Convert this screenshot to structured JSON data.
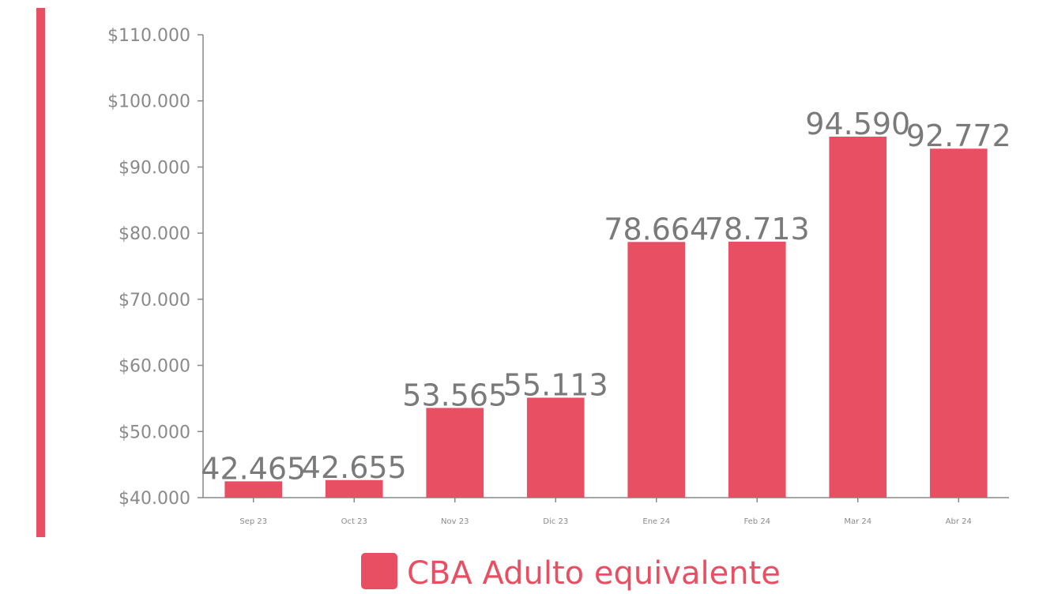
{
  "chart_data": {
    "type": "bar",
    "categories": [
      "Sep 23",
      "Oct 23",
      "Nov 23",
      "Dic 23",
      "Ene 24",
      "Feb 24",
      "Mar 24",
      "Abr 24"
    ],
    "series": [
      {
        "name": "CBA Adulto equivalente",
        "color": "#e84f62",
        "values": [
          42465,
          42655,
          53565,
          55113,
          78664,
          78713,
          94590,
          92772
        ],
        "value_labels": [
          "42.465",
          "42.655",
          "53.565",
          "55.113",
          "78.664",
          "78.713",
          "94.590",
          "92.772"
        ]
      }
    ],
    "ylim": [
      40000,
      110000
    ],
    "yticks": [
      {
        "value": 40000,
        "label": "$40.000"
      },
      {
        "value": 50000,
        "label": "$50.000"
      },
      {
        "value": 60000,
        "label": "$60.000"
      },
      {
        "value": 70000,
        "label": "$70.000"
      },
      {
        "value": 80000,
        "label": "$80.000"
      },
      {
        "value": 90000,
        "label": "$90.000"
      },
      {
        "value": 100000,
        "label": "$100.000"
      },
      {
        "value": 110000,
        "label": "$110.000"
      }
    ],
    "grid": false,
    "legend": "bottom"
  }
}
